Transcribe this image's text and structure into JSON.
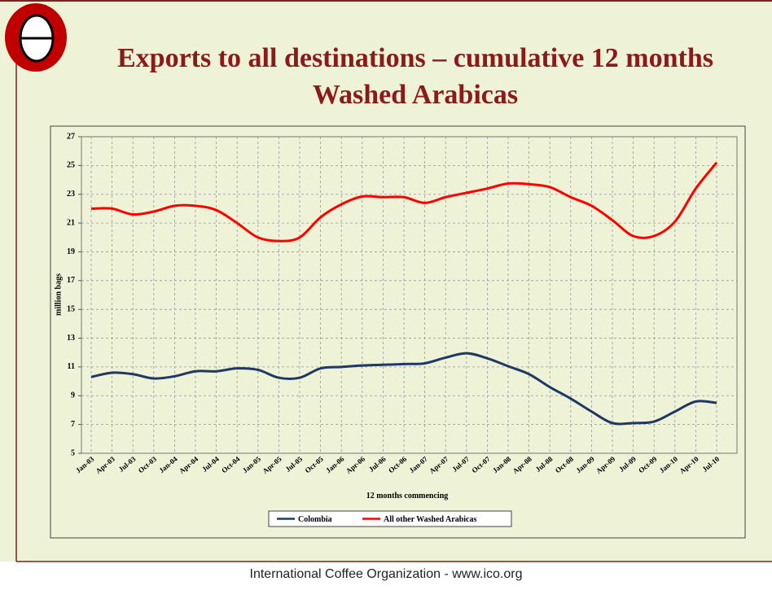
{
  "header": {
    "title_line1": "Exports to all destinations – cumulative 12 months",
    "title_line2": "Washed Arabicas"
  },
  "footer": "International Coffee Organization  -  www.ico.org",
  "chart_data": {
    "type": "line",
    "x_label": "12 months commencing",
    "y_label": "million bags",
    "categories": [
      "Jan-03",
      "Apr-03",
      "Jul-03",
      "Oct-03",
      "Jan-04",
      "Apr-04",
      "Jul-04",
      "Oct-04",
      "Jan-05",
      "Apr-05",
      "Jul-05",
      "Oct-05",
      "Jan-06",
      "Apr-06",
      "Jul-06",
      "Oct-06",
      "Jan-07",
      "Apr-07",
      "Jul-07",
      "Oct-07",
      "Jan-08",
      "Apr-08",
      "Jul-08",
      "Oct-08",
      "Jan-09",
      "Apr-09",
      "Jul-09",
      "Oct-09",
      "Jan-10",
      "Apr-10",
      "Jul-10"
    ],
    "series": [
      {
        "name": "Colombia",
        "color": "#1f3864",
        "values": [
          10.3,
          10.6,
          10.5,
          10.2,
          10.35,
          10.7,
          10.7,
          10.9,
          10.8,
          10.25,
          10.25,
          10.9,
          11.0,
          11.1,
          11.15,
          11.2,
          11.25,
          11.65,
          11.95,
          11.6,
          11.05,
          10.5,
          9.6,
          8.8,
          7.9,
          7.1,
          7.1,
          7.2,
          7.9,
          8.6,
          8.5
        ]
      },
      {
        "name": "All other Washed Arabicas",
        "color": "#ff0000",
        "values": [
          22.0,
          22.0,
          21.6,
          21.8,
          22.2,
          22.2,
          21.9,
          21.0,
          20.0,
          19.75,
          20.0,
          21.4,
          22.3,
          22.85,
          22.8,
          22.8,
          22.4,
          22.8,
          23.1,
          23.4,
          23.75,
          23.7,
          23.5,
          22.8,
          22.2,
          21.2,
          20.1,
          20.1,
          21.1,
          23.4,
          25.2
        ]
      }
    ],
    "ylim": [
      5,
      27
    ],
    "yticks": [
      5,
      7,
      9,
      11,
      13,
      15,
      17,
      19,
      21,
      23,
      25,
      27
    ],
    "grid": true,
    "legend": "bottom"
  }
}
